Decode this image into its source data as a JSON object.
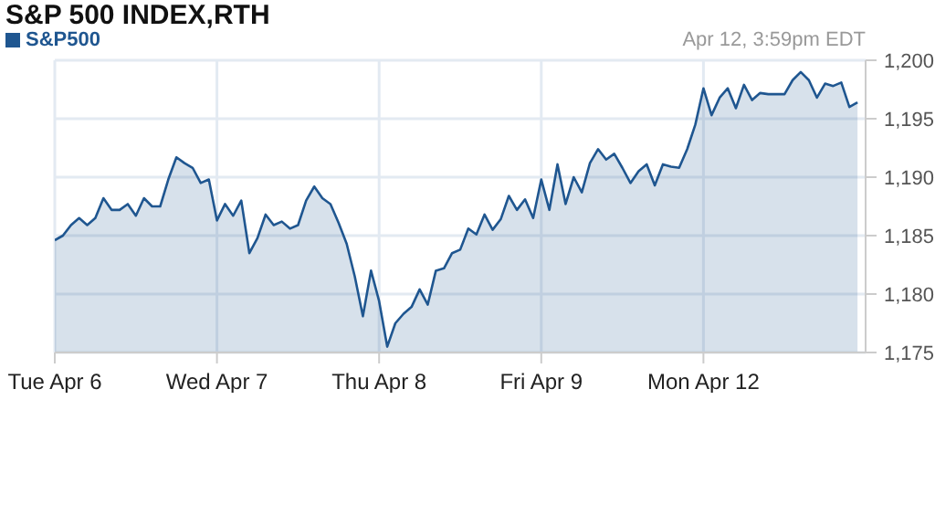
{
  "chart_data": {
    "type": "area",
    "title": "S&P 500 INDEX,RTH",
    "subtitle": "Apr 12, 3:59pm EDT",
    "categories": [
      "Tue Apr  6",
      null,
      null,
      null,
      null,
      null,
      null,
      null,
      null,
      null,
      null,
      null,
      null,
      null,
      null,
      null,
      null,
      null,
      null,
      null,
      "Wed Apr  7",
      null,
      null,
      null,
      null,
      null,
      null,
      null,
      null,
      null,
      null,
      null,
      null,
      null,
      null,
      null,
      null,
      null,
      null,
      null,
      "Thu Apr  8",
      null,
      null,
      null,
      null,
      null,
      null,
      null,
      null,
      null,
      null,
      null,
      null,
      null,
      null,
      null,
      null,
      null,
      null,
      null,
      "Fri Apr  9",
      null,
      null,
      null,
      null,
      null,
      null,
      null,
      null,
      null,
      null,
      null,
      null,
      null,
      null,
      null,
      null,
      null,
      null,
      null,
      "Mon Apr 12",
      null,
      null,
      null,
      null,
      null,
      null,
      null,
      null,
      null,
      null,
      null,
      null,
      null,
      null,
      null,
      null,
      null,
      null,
      null
    ],
    "series": [
      {
        "name": "S&P500",
        "color": "#1f5690",
        "values": [
          1184.6,
          1185.0,
          1185.9,
          1186.5,
          1185.9,
          1186.5,
          1188.2,
          1187.2,
          1187.2,
          1187.7,
          1186.7,
          1188.2,
          1187.5,
          1187.5,
          1189.8,
          1191.7,
          1191.2,
          1190.8,
          1189.5,
          1189.8,
          1186.3,
          1187.7,
          1186.7,
          1188.0,
          1183.5,
          1184.8,
          1186.8,
          1185.9,
          1186.2,
          1185.6,
          1185.9,
          1188.0,
          1189.2,
          1188.2,
          1187.7,
          1186.1,
          1184.3,
          1181.5,
          1178.1,
          1182.0,
          1179.4,
          1175.5,
          1177.5,
          1178.3,
          1178.9,
          1180.4,
          1179.1,
          1182.0,
          1182.2,
          1183.5,
          1183.8,
          1185.6,
          1185.1,
          1186.8,
          1185.5,
          1186.4,
          1188.4,
          1187.2,
          1188.1,
          1186.5,
          1189.8,
          1187.2,
          1191.1,
          1187.7,
          1190.0,
          1188.7,
          1191.2,
          1192.4,
          1191.5,
          1192.0,
          1190.8,
          1189.5,
          1190.5,
          1191.1,
          1189.3,
          1191.1,
          1190.9,
          1190.8,
          1192.4,
          1194.5,
          1197.6,
          1195.3,
          1196.8,
          1197.6,
          1195.9,
          1197.9,
          1196.6,
          1197.2,
          1197.1,
          1197.1,
          1197.1,
          1198.3,
          1199.0,
          1198.3,
          1196.8,
          1198.0,
          1197.8,
          1198.1,
          1196.0,
          1196.4
        ]
      }
    ],
    "ylim": [
      1175,
      1200
    ],
    "yticks": [
      {
        "value": 1175,
        "label": "1,175"
      },
      {
        "value": 1180,
        "label": "1,180"
      },
      {
        "value": 1185,
        "label": "1,185"
      },
      {
        "value": 1190,
        "label": "1,190"
      },
      {
        "value": 1195,
        "label": "1,195"
      },
      {
        "value": 1200,
        "label": "1,200"
      }
    ],
    "grid": true,
    "legend": "top left"
  }
}
